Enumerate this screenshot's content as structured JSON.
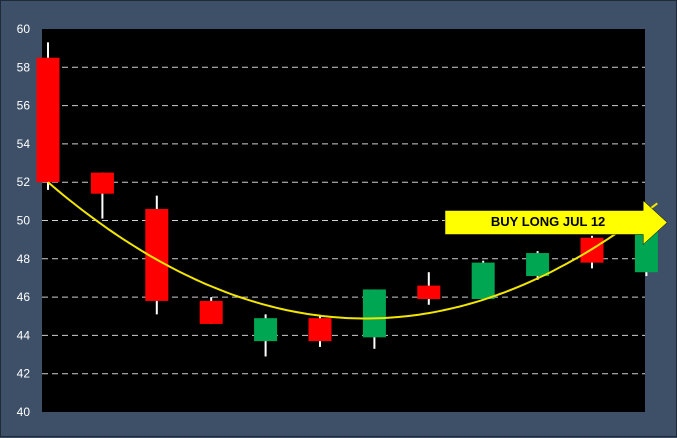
{
  "chart_data": {
    "type": "candlestick",
    "title": "",
    "xlabel": "",
    "ylabel": "",
    "ylim": [
      40,
      60
    ],
    "y_ticks": [
      "40",
      "42",
      "44",
      "46",
      "48",
      "50",
      "52",
      "54",
      "56",
      "58",
      "60"
    ],
    "grid": "horizontal dashed",
    "colors": {
      "background": "#000000",
      "frame": "#3d5068",
      "up": "#00a651",
      "down": "#ff0000",
      "wick": "#ffffff",
      "grid": "#cfcfcf",
      "trend": "#f2e600",
      "annotation_fill": "#ffff00"
    },
    "candles": [
      {
        "open": 58.5,
        "close": 52.0,
        "high": 59.3,
        "low": 51.6,
        "color": "down"
      },
      {
        "open": 52.5,
        "close": 51.4,
        "high": 52.5,
        "low": 50.1,
        "color": "down"
      },
      {
        "open": 50.6,
        "close": 45.8,
        "high": 51.3,
        "low": 45.1,
        "color": "down"
      },
      {
        "open": 45.8,
        "close": 44.6,
        "high": 46.0,
        "low": 44.6,
        "color": "down"
      },
      {
        "open": 43.7,
        "close": 44.9,
        "high": 45.1,
        "low": 42.9,
        "color": "up"
      },
      {
        "open": 44.9,
        "close": 43.7,
        "high": 45.0,
        "low": 43.4,
        "color": "down"
      },
      {
        "open": 43.9,
        "close": 46.4,
        "high": 46.4,
        "low": 43.3,
        "color": "up"
      },
      {
        "open": 46.6,
        "close": 45.9,
        "high": 47.3,
        "low": 45.6,
        "color": "down"
      },
      {
        "open": 45.9,
        "close": 47.8,
        "high": 47.9,
        "low": 45.9,
        "color": "up"
      },
      {
        "open": 47.1,
        "close": 48.3,
        "high": 48.4,
        "low": 46.9,
        "color": "up"
      },
      {
        "open": 49.1,
        "close": 47.8,
        "high": 49.2,
        "low": 47.5,
        "color": "down"
      },
      {
        "open": 47.3,
        "close": 50.3,
        "high": 50.4,
        "low": 47.1,
        "color": "up"
      }
    ],
    "trend_line": {
      "type": "parabolic",
      "points": [
        {
          "x": 0,
          "y": 52.0
        },
        {
          "x": 5.55,
          "y": 44.9
        },
        {
          "x": 11.2,
          "y": 50.9
        }
      ]
    },
    "annotations": [
      {
        "text": "BUY LONG JUL 12",
        "shape": "right-arrow",
        "anchor_candle": 10.5,
        "y": 50.0
      }
    ]
  }
}
